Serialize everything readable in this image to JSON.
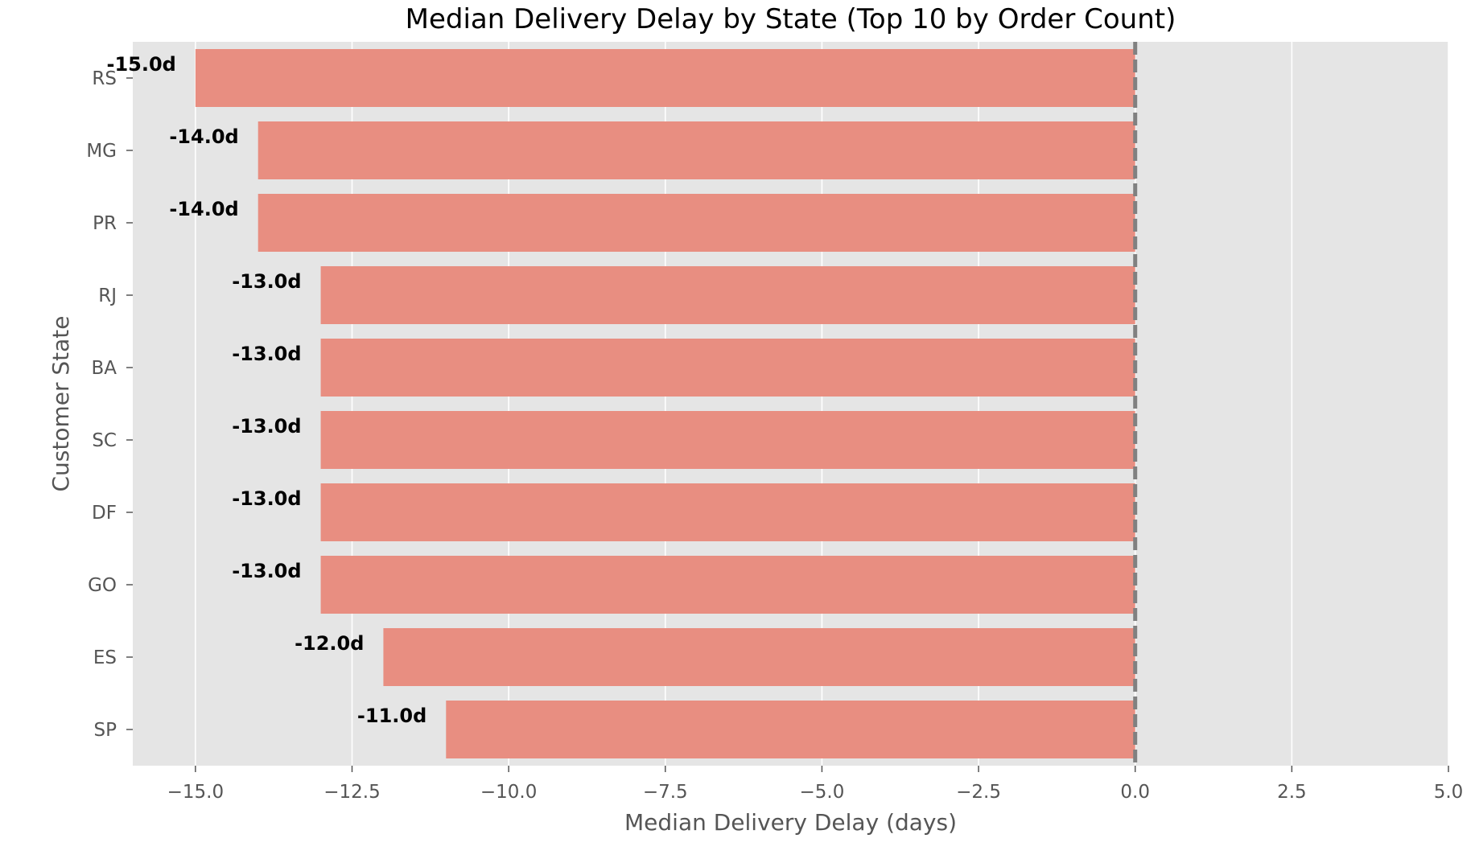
{
  "chart_data": {
    "type": "bar",
    "orientation": "horizontal",
    "title": "Median Delivery Delay by State (Top 10 by Order Count)",
    "xlabel": "Median Delivery Delay (days)",
    "ylabel": "Customer State",
    "categories": [
      "RS",
      "MG",
      "PR",
      "RJ",
      "BA",
      "SC",
      "DF",
      "GO",
      "ES",
      "SP"
    ],
    "values": [
      -15.0,
      -14.0,
      -14.0,
      -13.0,
      -13.0,
      -13.0,
      -13.0,
      -13.0,
      -12.0,
      -11.0
    ],
    "data_labels": [
      "-15.0d",
      "-14.0d",
      "-14.0d",
      "-13.0d",
      "-13.0d",
      "-13.0d",
      "-13.0d",
      "-13.0d",
      "-12.0d",
      "-11.0d"
    ],
    "xlim": [
      -16.0,
      5.0
    ],
    "xticks": [
      -15.0,
      -12.5,
      -10.0,
      -7.5,
      -5.0,
      -2.5,
      0.0,
      2.5,
      5.0
    ],
    "xtick_labels": [
      "−15.0",
      "−12.5",
      "−10.0",
      "−7.5",
      "−5.0",
      "−2.5",
      "0.0",
      "2.5",
      "5.0"
    ],
    "reference_line": {
      "x": 0.0,
      "style": "dashed",
      "color": "#808080"
    },
    "grid": true,
    "colors": {
      "bar": "#E88E81",
      "background": "#E5E5E5",
      "grid": "#FFFFFF"
    }
  }
}
